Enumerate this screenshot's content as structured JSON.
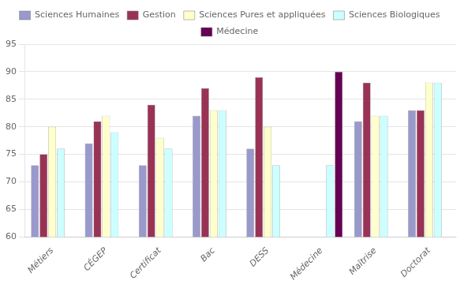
{
  "chart_data": {
    "type": "bar",
    "categories": [
      "Métiers",
      "CÉGEP",
      "Certificat",
      "Bac",
      "DESS",
      "Médecine",
      "Maîtrise",
      "Doctorat"
    ],
    "series": [
      {
        "name": "Sciences Humaines",
        "color": "#9999cc",
        "values": [
          73,
          77,
          73,
          82,
          76,
          null,
          81,
          83
        ]
      },
      {
        "name": "Gestion",
        "color": "#993355",
        "values": [
          75,
          81,
          84,
          87,
          89,
          null,
          88,
          83
        ]
      },
      {
        "name": "Sciences Pures et appliquées",
        "color": "#ffffcc",
        "values": [
          80,
          82,
          78,
          83,
          80,
          null,
          82,
          88
        ]
      },
      {
        "name": "Sciences Biologiques",
        "color": "#ccffff",
        "values": [
          76,
          79,
          76,
          83,
          73,
          73,
          82,
          88
        ]
      },
      {
        "name": "Médecine",
        "color": "#660055",
        "values": [
          null,
          null,
          null,
          null,
          null,
          90,
          null,
          null
        ]
      }
    ],
    "ylim": [
      60,
      95
    ],
    "yticks": [
      60,
      65,
      70,
      75,
      80,
      85,
      90,
      95
    ],
    "grid": true,
    "legend": "top"
  }
}
